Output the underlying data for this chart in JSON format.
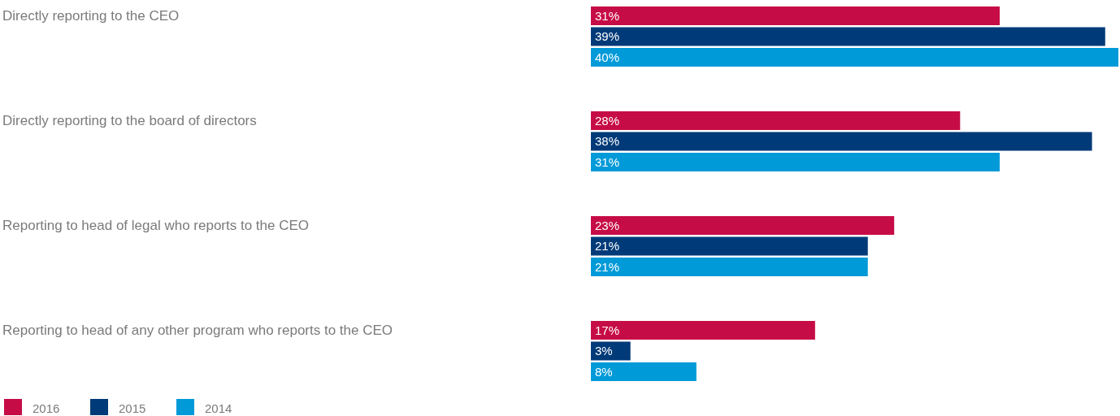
{
  "chart_data": {
    "type": "bar",
    "orientation": "horizontal",
    "categories": [
      "Directly reporting to the CEO",
      "Directly reporting to the board of directors",
      "Reporting to head of legal who reports to the CEO",
      "Reporting to head of any other program who reports to the CEO"
    ],
    "series": [
      {
        "name": "2016",
        "color": "#c60c46",
        "values": [
          31,
          28,
          23,
          17
        ],
        "value_labels": [
          "31%",
          "28%",
          "23%",
          "17%"
        ]
      },
      {
        "name": "2015",
        "color": "#003a78",
        "values": [
          39,
          38,
          21,
          3
        ],
        "value_labels": [
          "39%",
          "38%",
          "21%",
          "3%"
        ]
      },
      {
        "name": "2014",
        "color": "#009ad8",
        "values": [
          40,
          31,
          21,
          8
        ],
        "value_labels": [
          "40%",
          "31%",
          "21%",
          "8%"
        ]
      }
    ],
    "legend": "bottom left"
  }
}
